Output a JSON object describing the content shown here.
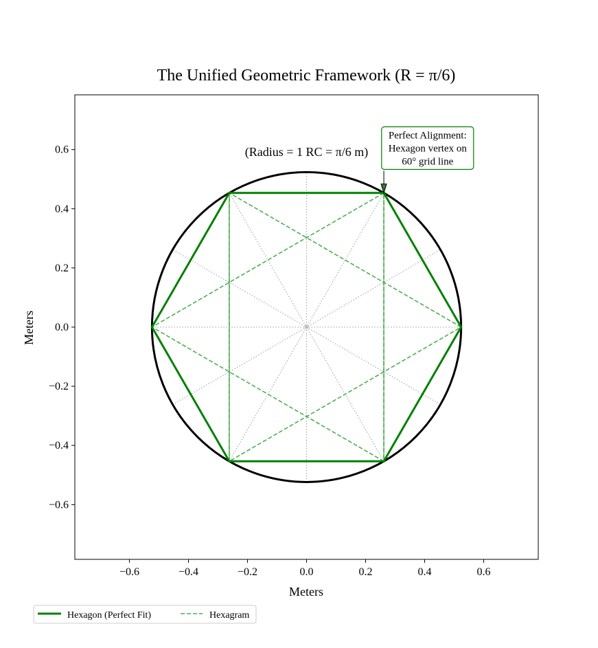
{
  "chart_data": {
    "type": "line",
    "title": "The Unified Geometric Framework (R = π/6)",
    "xlabel": "Meters",
    "ylabel": "Meters",
    "xlim": [
      -0.785,
      0.785
    ],
    "ylim": [
      -0.785,
      0.785
    ],
    "xticks": [
      -0.6,
      -0.4,
      -0.2,
      0.0,
      0.2,
      0.4,
      0.6
    ],
    "yticks": [
      -0.6,
      -0.4,
      -0.2,
      0.0,
      0.2,
      0.4,
      0.6
    ],
    "xtick_labels": [
      "−0.6",
      "−0.4",
      "−0.2",
      "0.0",
      "0.2",
      "0.4",
      "0.6"
    ],
    "ytick_labels": [
      "−0.6",
      "−0.4",
      "−0.2",
      "0.0",
      "0.2",
      "0.4",
      "0.6"
    ],
    "circle": {
      "radius": 0.5236,
      "color": "#000000"
    },
    "grid_lines": {
      "angles_deg": [
        0,
        30,
        60,
        90,
        120,
        150
      ],
      "style": "dotted",
      "color": "#999999"
    },
    "series": [
      {
        "name": "Hexagon (Perfect Fit)",
        "style": "solid",
        "color": "#008000",
        "vertices_angles_deg": [
          0,
          60,
          120,
          180,
          240,
          300
        ]
      },
      {
        "name": "Hexagram",
        "style": "dashed",
        "color": "#4caf50",
        "triangles_angles_deg": [
          [
            0,
            120,
            240
          ],
          [
            60,
            180,
            300
          ],
          [
            60,
            120,
            240,
            300
          ]
        ]
      }
    ],
    "annotations": [
      {
        "text": "(Radius = 1 RC = π/6 m)",
        "x": 0.0,
        "y": 0.59
      },
      {
        "lines": [
          "Perfect Alignment:",
          "Hexagon vertex on",
          "60° grid line"
        ],
        "box_color": "#008000",
        "box_center": [
          0.41,
          0.605
        ],
        "arrow_to": [
          0.2618,
          0.4534
        ]
      }
    ],
    "legend": {
      "placement": "bottom-left",
      "ncol": 2,
      "entries": [
        "Hexagon (Perfect Fit)",
        "Hexagram"
      ]
    },
    "grid": false
  }
}
